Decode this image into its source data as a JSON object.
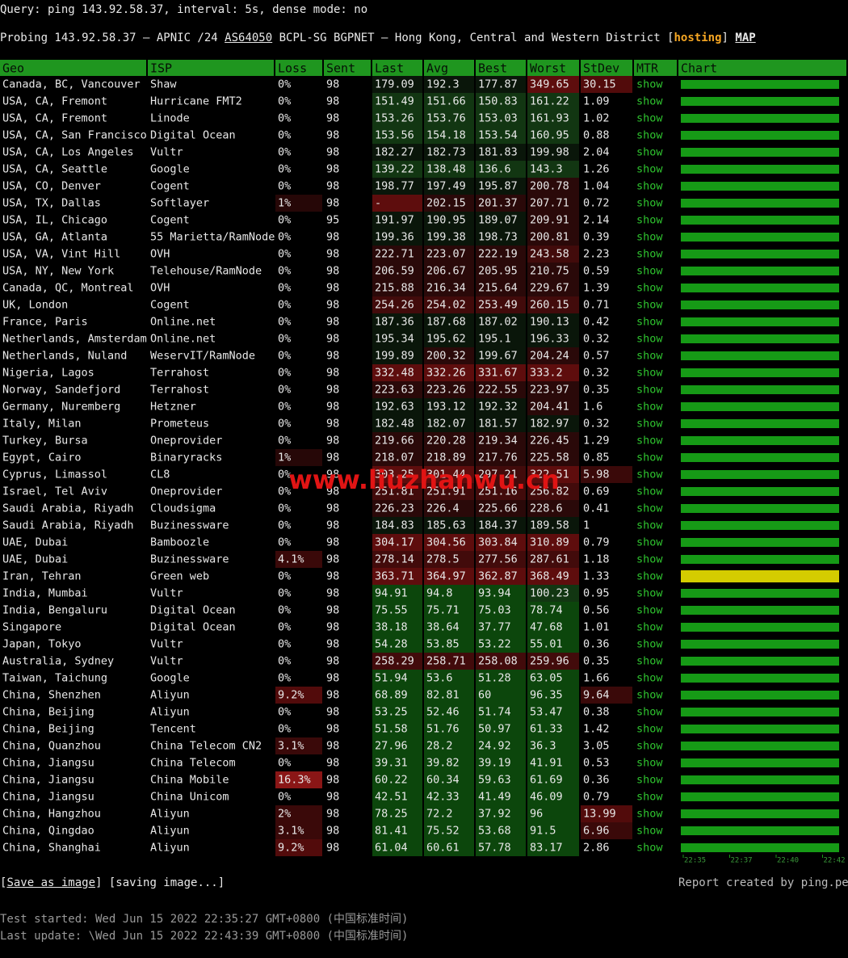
{
  "query": "Query: ping 143.92.58.37, interval: 5s, dense mode: no",
  "probe": {
    "lead": "Probing 143.92.58.37 — APNIC /24",
    "asn": "AS64050",
    "location": "BCPL-SG BGPNET — Hong Kong, Central and Western District",
    "open": "[",
    "tag": "hosting",
    "close": "]",
    "map": "MAP"
  },
  "table": {
    "header": [
      "Geo",
      "ISP",
      "Loss",
      "Sent",
      "Last",
      "Avg",
      "Best",
      "Worst",
      "StDev",
      "MTR",
      "Chart"
    ],
    "rows": [
      [
        "Canada, BC, Vancouver",
        "Shaw",
        "0%",
        "98",
        "179.09",
        "192.3",
        "177.87",
        "349.65",
        "30.15",
        "show"
      ],
      [
        "USA, CA, Fremont",
        "Hurricane FMT2",
        "0%",
        "98",
        "151.49",
        "151.66",
        "150.83",
        "161.22",
        "1.09",
        "show"
      ],
      [
        "USA, CA, Fremont",
        "Linode",
        "0%",
        "98",
        "153.26",
        "153.76",
        "153.03",
        "161.93",
        "1.02",
        "show"
      ],
      [
        "USA, CA, San Francisco",
        "Digital Ocean",
        "0%",
        "98",
        "153.56",
        "154.18",
        "153.54",
        "160.95",
        "0.88",
        "show"
      ],
      [
        "USA, CA, Los Angeles",
        "Vultr",
        "0%",
        "98",
        "182.27",
        "182.73",
        "181.83",
        "199.98",
        "2.04",
        "show"
      ],
      [
        "USA, CA, Seattle",
        "Google",
        "0%",
        "98",
        "139.22",
        "138.48",
        "136.6",
        "143.3",
        "1.26",
        "show"
      ],
      [
        "USA, CO, Denver",
        "Cogent",
        "0%",
        "98",
        "198.77",
        "197.49",
        "195.87",
        "200.78",
        "1.04",
        "show"
      ],
      [
        "USA, TX, Dallas",
        "Softlayer",
        "1%",
        "98",
        "-",
        "202.15",
        "201.37",
        "207.71",
        "0.72",
        "show"
      ],
      [
        "USA, IL, Chicago",
        "Cogent",
        "0%",
        "95",
        "191.97",
        "190.95",
        "189.07",
        "209.91",
        "2.14",
        "show"
      ],
      [
        "USA, GA, Atlanta",
        "55 Marietta/RamNode",
        "0%",
        "98",
        "199.36",
        "199.38",
        "198.73",
        "200.81",
        "0.39",
        "show"
      ],
      [
        "USA, VA, Vint Hill",
        "OVH",
        "0%",
        "98",
        "222.71",
        "223.07",
        "222.19",
        "243.58",
        "2.23",
        "show"
      ],
      [
        "USA, NY, New York",
        "Telehouse/RamNode",
        "0%",
        "98",
        "206.59",
        "206.67",
        "205.95",
        "210.75",
        "0.59",
        "show"
      ],
      [
        "Canada, QC, Montreal",
        "OVH",
        "0%",
        "98",
        "215.88",
        "216.34",
        "215.64",
        "229.67",
        "1.39",
        "show"
      ],
      [
        "UK, London",
        "Cogent",
        "0%",
        "98",
        "254.26",
        "254.02",
        "253.49",
        "260.15",
        "0.71",
        "show"
      ],
      [
        "France, Paris",
        "Online.net",
        "0%",
        "98",
        "187.36",
        "187.68",
        "187.02",
        "190.13",
        "0.42",
        "show"
      ],
      [
        "Netherlands, Amsterdam",
        "Online.net",
        "0%",
        "98",
        "195.34",
        "195.62",
        "195.1",
        "196.33",
        "0.32",
        "show"
      ],
      [
        "Netherlands, Nuland",
        "WeservIT/RamNode",
        "0%",
        "98",
        "199.89",
        "200.32",
        "199.67",
        "204.24",
        "0.57",
        "show"
      ],
      [
        "Nigeria, Lagos",
        "Terrahost",
        "0%",
        "98",
        "332.48",
        "332.26",
        "331.67",
        "333.2",
        "0.32",
        "show"
      ],
      [
        "Norway, Sandefjord",
        "Terrahost",
        "0%",
        "98",
        "223.63",
        "223.26",
        "222.55",
        "223.97",
        "0.35",
        "show"
      ],
      [
        "Germany, Nuremberg",
        "Hetzner",
        "0%",
        "98",
        "192.63",
        "193.12",
        "192.32",
        "204.41",
        "1.6",
        "show"
      ],
      [
        "Italy, Milan",
        "Prometeus",
        "0%",
        "98",
        "182.48",
        "182.07",
        "181.57",
        "182.97",
        "0.32",
        "show"
      ],
      [
        "Turkey, Bursa",
        "Oneprovider",
        "0%",
        "98",
        "219.66",
        "220.28",
        "219.34",
        "226.45",
        "1.29",
        "show"
      ],
      [
        "Egypt, Cairo",
        "Binaryracks",
        "1%",
        "98",
        "218.07",
        "218.89",
        "217.76",
        "225.58",
        "0.85",
        "show"
      ],
      [
        "Cyprus, Limassol",
        "CL8",
        "0%",
        "98",
        "303.25",
        "301.44",
        "297.21",
        "322.51",
        "5.98",
        "show"
      ],
      [
        "Israel, Tel Aviv",
        "Oneprovider",
        "0%",
        "98",
        "251.81",
        "251.91",
        "251.16",
        "256.82",
        "0.69",
        "show"
      ],
      [
        "Saudi Arabia, Riyadh",
        "Cloudsigma",
        "0%",
        "98",
        "226.23",
        "226.4",
        "225.66",
        "228.6",
        "0.41",
        "show"
      ],
      [
        "Saudi Arabia, Riyadh",
        "Buzinessware",
        "0%",
        "98",
        "184.83",
        "185.63",
        "184.37",
        "189.58",
        "1",
        "show"
      ],
      [
        "UAE, Dubai",
        "Bamboozle",
        "0%",
        "98",
        "304.17",
        "304.56",
        "303.84",
        "310.89",
        "0.79",
        "show"
      ],
      [
        "UAE, Dubai",
        "Buzinessware",
        "4.1%",
        "98",
        "278.14",
        "278.5",
        "277.56",
        "287.61",
        "1.18",
        "show"
      ],
      [
        "Iran, Tehran",
        "Green web",
        "0%",
        "98",
        "363.71",
        "364.97",
        "362.87",
        "368.49",
        "1.33",
        "show"
      ],
      [
        "India, Mumbai",
        "Vultr",
        "0%",
        "98",
        "94.91",
        "94.8",
        "93.94",
        "100.23",
        "0.95",
        "show"
      ],
      [
        "India, Bengaluru",
        "Digital Ocean",
        "0%",
        "98",
        "75.55",
        "75.71",
        "75.03",
        "78.74",
        "0.56",
        "show"
      ],
      [
        "Singapore",
        "Digital Ocean",
        "0%",
        "98",
        "38.18",
        "38.64",
        "37.77",
        "47.68",
        "1.01",
        "show"
      ],
      [
        "Japan, Tokyo",
        "Vultr",
        "0%",
        "98",
        "54.28",
        "53.85",
        "53.22",
        "55.01",
        "0.36",
        "show"
      ],
      [
        "Australia, Sydney",
        "Vultr",
        "0%",
        "98",
        "258.29",
        "258.71",
        "258.08",
        "259.96",
        "0.35",
        "show"
      ],
      [
        "Taiwan, Taichung",
        "Google",
        "0%",
        "98",
        "51.94",
        "53.6",
        "51.28",
        "63.05",
        "1.66",
        "show"
      ],
      [
        "China, Shenzhen",
        "Aliyun",
        "9.2%",
        "98",
        "68.89",
        "82.81",
        "60",
        "96.35",
        "9.64",
        "show"
      ],
      [
        "China, Beijing",
        "Aliyun",
        "0%",
        "98",
        "53.25",
        "52.46",
        "51.74",
        "53.47",
        "0.38",
        "show"
      ],
      [
        "China, Beijing",
        "Tencent",
        "0%",
        "98",
        "51.58",
        "51.76",
        "50.97",
        "61.33",
        "1.42",
        "show"
      ],
      [
        "China, Quanzhou",
        "China Telecom CN2",
        "3.1%",
        "98",
        "27.96",
        "28.2",
        "24.92",
        "36.3",
        "3.05",
        "show"
      ],
      [
        "China, Jiangsu",
        "China Telecom",
        "0%",
        "98",
        "39.31",
        "39.82",
        "39.19",
        "41.91",
        "0.53",
        "show"
      ],
      [
        "China, Jiangsu",
        "China Mobile",
        "16.3%",
        "98",
        "60.22",
        "60.34",
        "59.63",
        "61.69",
        "0.36",
        "show"
      ],
      [
        "China, Jiangsu",
        "China Unicom",
        "0%",
        "98",
        "42.51",
        "42.33",
        "41.49",
        "46.09",
        "0.79",
        "show"
      ],
      [
        "China, Hangzhou",
        "Aliyun",
        "2%",
        "98",
        "78.25",
        "72.2",
        "37.92",
        "96",
        "13.99",
        "show"
      ],
      [
        "China, Qingdao",
        "Aliyun",
        "3.1%",
        "98",
        "81.41",
        "75.52",
        "53.68",
        "91.5",
        "6.96",
        "show"
      ],
      [
        "China, Shanghai",
        "Aliyun",
        "9.2%",
        "98",
        "61.04",
        "60.61",
        "57.78",
        "83.17",
        "2.86",
        "show"
      ]
    ],
    "chart_color": "#169a16",
    "chart_alert_color": "#d4cc00",
    "chart_alert_row": 29,
    "chart_times": [
      "22:35",
      "22:37",
      "22:40",
      "22:42"
    ]
  },
  "watermark": "www.liuzhanwu.cn",
  "footer": {
    "save": "Save as image",
    "saving": "[saving image...]",
    "credit": "Report created by ping.pe",
    "started": "Test started: Wed Jun 15 2022 22:35:27 GMT+0800 (中国标准时间)",
    "updated": "Last update: \\Wed Jun 15 2022 22:43:39 GMT+0800 (中国标准时间)"
  }
}
